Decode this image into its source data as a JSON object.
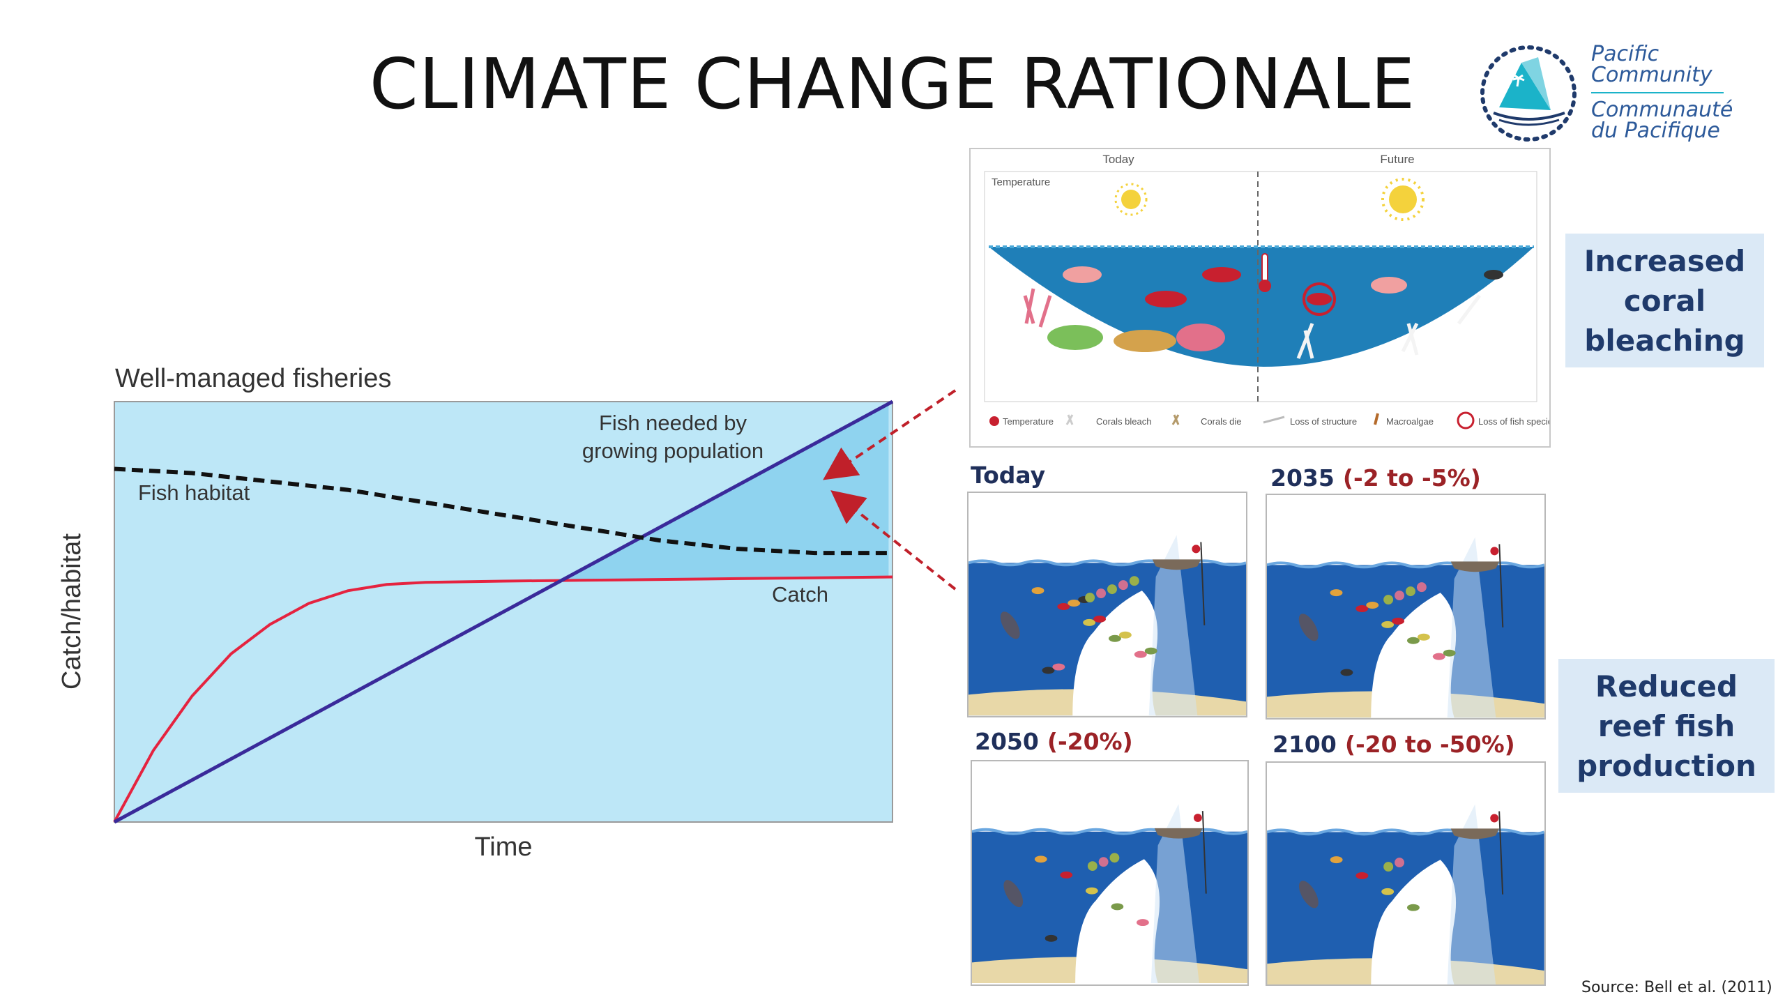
{
  "title": "CLIMATE CHANGE RATIONALE",
  "logo": {
    "line1": "Pacific",
    "line2": "Community",
    "line3": "Communauté",
    "line4": "du Pacifique",
    "colors": {
      "teal": "#1bb3c9",
      "navy": "#1f3a6b"
    }
  },
  "chart": {
    "title": "Well-managed fisheries",
    "ylabel": "Catch/habitat",
    "xlabel": "Time",
    "fish_needed_line1": "Fish needed by",
    "fish_needed_line2": "growing population",
    "habitat_label": "Fish habitat",
    "catch_label": "Catch"
  },
  "chart_data": {
    "type": "line",
    "title": "Well-managed fisheries",
    "xlabel": "Time",
    "ylabel": "Catch/habitat",
    "xlim": [
      0,
      1
    ],
    "ylim": [
      0,
      1
    ],
    "series": [
      {
        "name": "Fish needed by growing population",
        "style": "solid",
        "color": "#3a2a9a",
        "points": [
          [
            0,
            0
          ],
          [
            1,
            1
          ]
        ]
      },
      {
        "name": "Fish habitat",
        "style": "dashed",
        "color": "#111111",
        "points": [
          [
            0,
            0.84
          ],
          [
            0.1,
            0.83
          ],
          [
            0.2,
            0.81
          ],
          [
            0.3,
            0.79
          ],
          [
            0.4,
            0.76
          ],
          [
            0.5,
            0.73
          ],
          [
            0.6,
            0.7
          ],
          [
            0.7,
            0.67
          ],
          [
            0.8,
            0.65
          ],
          [
            0.9,
            0.64
          ],
          [
            1,
            0.64
          ]
        ]
      },
      {
        "name": "Catch",
        "style": "solid",
        "color": "#e5233f",
        "points": [
          [
            0,
            0
          ],
          [
            0.05,
            0.17
          ],
          [
            0.1,
            0.3
          ],
          [
            0.15,
            0.4
          ],
          [
            0.2,
            0.47
          ],
          [
            0.25,
            0.52
          ],
          [
            0.3,
            0.55
          ],
          [
            0.35,
            0.565
          ],
          [
            0.4,
            0.57
          ],
          [
            0.5,
            0.573
          ],
          [
            0.6,
            0.575
          ],
          [
            0.7,
            0.577
          ],
          [
            0.8,
            0.579
          ],
          [
            0.9,
            0.581
          ],
          [
            1,
            0.583
          ]
        ]
      }
    ],
    "colors": {
      "background": "#bde7f7",
      "gap_fill": "#8fd3ef",
      "frame": "#9a9a9a"
    }
  },
  "top_diagram": {
    "today_label": "Today",
    "future_label": "Future",
    "temperature_label": "Temperature",
    "legend": [
      {
        "icon": "thermometer-icon",
        "label": "Temperature"
      },
      {
        "icon": "coral-bleach-icon",
        "label": "Corals bleach"
      },
      {
        "icon": "coral-die-icon",
        "label": "Corals die"
      },
      {
        "icon": "structure-loss-icon",
        "label": "Loss of structure"
      },
      {
        "icon": "macroalgae-icon",
        "label": "Macroalgae"
      },
      {
        "icon": "fish-loss-icon",
        "label": "Loss of fish species"
      }
    ]
  },
  "callouts": {
    "bleaching": [
      "Increased",
      "coral",
      "bleaching"
    ],
    "reef": [
      "Reduced",
      "reef fish",
      "production"
    ]
  },
  "panels": [
    {
      "year": "Today",
      "change": ""
    },
    {
      "year": "2035",
      "change": "(-2 to -5%)"
    },
    {
      "year": "2050",
      "change": "(-20%)"
    },
    {
      "year": "2100",
      "change": "(-20 to -50%)"
    }
  ],
  "source": "Source: Bell et al. (2011)"
}
